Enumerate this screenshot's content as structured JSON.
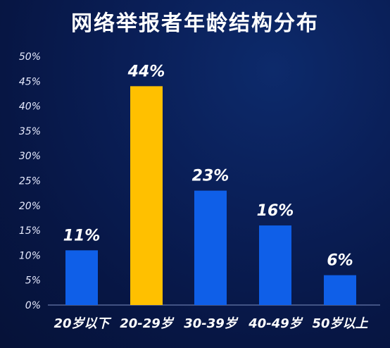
{
  "chart_data": {
    "type": "bar",
    "title": "网络举报者年龄结构分布",
    "categories": [
      "20岁以下",
      "20-29岁",
      "30-39岁",
      "40-49岁",
      "50岁以上"
    ],
    "values": [
      11,
      44,
      23,
      16,
      6
    ],
    "data_labels": [
      "11%",
      "44%",
      "23%",
      "16%",
      "6%"
    ],
    "y_ticks": [
      "0%",
      "5%",
      "10%",
      "15%",
      "20%",
      "25%",
      "30%",
      "35%",
      "40%",
      "45%",
      "50%"
    ],
    "ylim": [
      0,
      50
    ],
    "grid": false,
    "highlight_index": 1,
    "colors": {
      "bar": "#0f5fe8",
      "highlight": "#ffc000",
      "axis": "#7d8fc0",
      "text": "#ffffff"
    }
  }
}
